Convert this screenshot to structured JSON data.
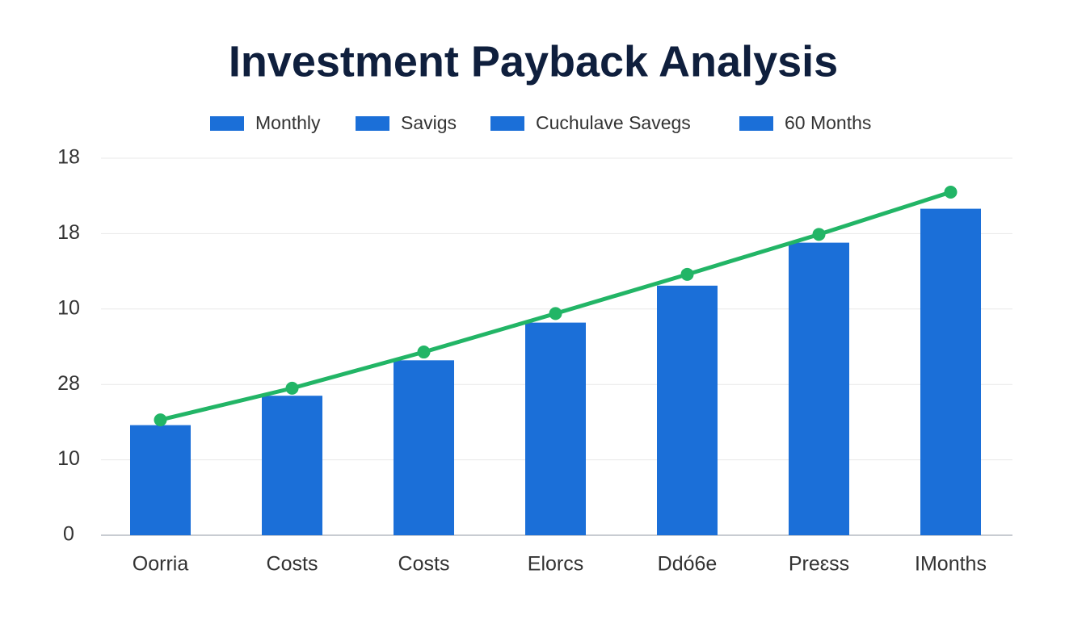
{
  "chart_data": {
    "type": "bar_line",
    "title": "Investment Payback Analysis",
    "legend": [
      {
        "label": "Monthly",
        "color": "#1b6fd8"
      },
      {
        "label": "Savigs",
        "color": "#1b6fd8"
      },
      {
        "label": "Cuchulave Savegs",
        "color": "#1b6fd8"
      },
      {
        "label": "60 Months",
        "color": "#1b6fd8"
      }
    ],
    "categories": [
      "Oorria",
      "Costs",
      "Costs",
      "Elorcs",
      "Ddó6e",
      "Preɛss",
      "IMonths"
    ],
    "series": [
      {
        "type": "bar",
        "color": "#1b6fd8",
        "values": [
          1.46,
          1.85,
          2.32,
          2.82,
          3.31,
          3.88,
          4.33
        ]
      },
      {
        "type": "line",
        "color": "#22b566",
        "values": [
          1.53,
          1.95,
          2.43,
          2.94,
          3.46,
          3.99,
          4.55
        ]
      }
    ],
    "ylim": [
      0,
      5
    ],
    "yticks": [
      0,
      {
        "value": 1,
        "label": "10"
      },
      {
        "value": 2,
        "label": "28"
      },
      {
        "value": 3,
        "label": "10"
      },
      {
        "value": 4,
        "label": "18"
      },
      {
        "value": 5,
        "label": "18"
      }
    ],
    "grid": true
  }
}
